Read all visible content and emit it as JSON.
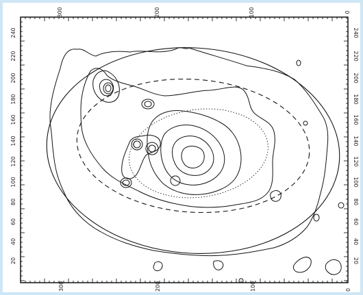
{
  "axes": {
    "x_ticks": [
      "300",
      "200",
      "100",
      "0"
    ],
    "y_ticks": [
      "20",
      "40",
      "60",
      "80",
      "100",
      "120",
      "140",
      "160",
      "180",
      "200",
      "220",
      "240"
    ]
  }
}
